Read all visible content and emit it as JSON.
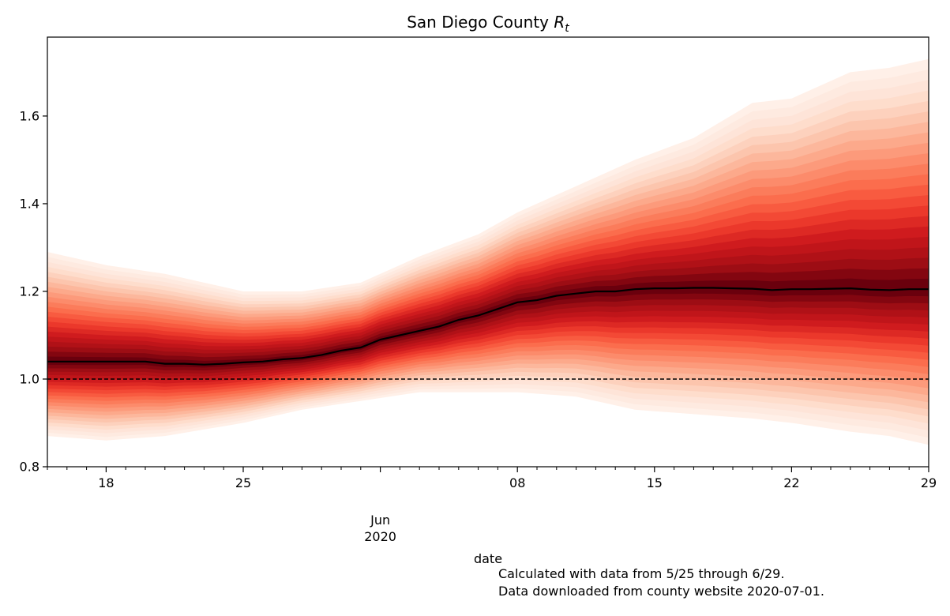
{
  "chart_data": {
    "type": "area",
    "title_text": "San Diego County ",
    "title_math_base": "R",
    "title_math_sub": "t",
    "xlabel": "date",
    "x_range": [
      "2020-05-15",
      "2020-06-29"
    ],
    "ylim": [
      0.8,
      1.78
    ],
    "y_ticks": [
      0.8,
      1.0,
      1.2,
      1.4,
      1.6
    ],
    "y_tick_labels": [
      "0.8",
      "1.0",
      "1.2",
      "1.4",
      "1.6"
    ],
    "x_major_ticks": [
      {
        "date": "2020-05-18",
        "label": "18"
      },
      {
        "date": "2020-05-25",
        "label": "25"
      },
      {
        "date": "2020-06-01",
        "label": "Jun\n2020"
      },
      {
        "date": "2020-06-08",
        "label": "08"
      },
      {
        "date": "2020-06-15",
        "label": "15"
      },
      {
        "date": "2020-06-22",
        "label": "22"
      },
      {
        "date": "2020-06-29",
        "label": "29"
      }
    ],
    "reference_line": {
      "y": 1.0,
      "style": "dashed",
      "color": "#000000"
    },
    "colormap": "Reds",
    "grid": false,
    "series": [
      {
        "role": "median",
        "color": "#000000",
        "points": [
          [
            "2020-05-15",
            1.04
          ],
          [
            "2020-05-16",
            1.04
          ],
          [
            "2020-05-17",
            1.04
          ],
          [
            "2020-05-18",
            1.04
          ],
          [
            "2020-05-19",
            1.04
          ],
          [
            "2020-05-20",
            1.04
          ],
          [
            "2020-05-21",
            1.035
          ],
          [
            "2020-05-22",
            1.035
          ],
          [
            "2020-05-23",
            1.033
          ],
          [
            "2020-05-24",
            1.035
          ],
          [
            "2020-05-25",
            1.038
          ],
          [
            "2020-05-26",
            1.04
          ],
          [
            "2020-05-27",
            1.045
          ],
          [
            "2020-05-28",
            1.048
          ],
          [
            "2020-05-29",
            1.055
          ],
          [
            "2020-05-30",
            1.065
          ],
          [
            "2020-05-31",
            1.072
          ],
          [
            "2020-06-01",
            1.09
          ],
          [
            "2020-06-02",
            1.1
          ],
          [
            "2020-06-03",
            1.11
          ],
          [
            "2020-06-04",
            1.12
          ],
          [
            "2020-06-05",
            1.135
          ],
          [
            "2020-06-06",
            1.145
          ],
          [
            "2020-06-07",
            1.16
          ],
          [
            "2020-06-08",
            1.175
          ],
          [
            "2020-06-09",
            1.18
          ],
          [
            "2020-06-10",
            1.19
          ],
          [
            "2020-06-11",
            1.195
          ],
          [
            "2020-06-12",
            1.2
          ],
          [
            "2020-06-13",
            1.2
          ],
          [
            "2020-06-14",
            1.205
          ],
          [
            "2020-06-15",
            1.207
          ],
          [
            "2020-06-16",
            1.207
          ],
          [
            "2020-06-17",
            1.208
          ],
          [
            "2020-06-18",
            1.208
          ],
          [
            "2020-06-19",
            1.207
          ],
          [
            "2020-06-20",
            1.206
          ],
          [
            "2020-06-21",
            1.203
          ],
          [
            "2020-06-22",
            1.205
          ],
          [
            "2020-06-23",
            1.205
          ],
          [
            "2020-06-24",
            1.206
          ],
          [
            "2020-06-25",
            1.207
          ],
          [
            "2020-06-26",
            1.204
          ],
          [
            "2020-06-27",
            1.203
          ],
          [
            "2020-06-28",
            1.205
          ],
          [
            "2020-06-29",
            1.205
          ]
        ]
      },
      {
        "role": "credible-band-upper",
        "points": [
          [
            "2020-05-15",
            1.29
          ],
          [
            "2020-05-18",
            1.26
          ],
          [
            "2020-05-21",
            1.24
          ],
          [
            "2020-05-25",
            1.2
          ],
          [
            "2020-05-28",
            1.2
          ],
          [
            "2020-05-31",
            1.22
          ],
          [
            "2020-06-03",
            1.28
          ],
          [
            "2020-06-06",
            1.33
          ],
          [
            "2020-06-08",
            1.38
          ],
          [
            "2020-06-11",
            1.44
          ],
          [
            "2020-06-14",
            1.5
          ],
          [
            "2020-06-17",
            1.55
          ],
          [
            "2020-06-20",
            1.63
          ],
          [
            "2020-06-22",
            1.64
          ],
          [
            "2020-06-25",
            1.7
          ],
          [
            "2020-06-27",
            1.71
          ],
          [
            "2020-06-29",
            1.73
          ]
        ]
      },
      {
        "role": "credible-band-lower",
        "points": [
          [
            "2020-05-15",
            0.87
          ],
          [
            "2020-05-18",
            0.86
          ],
          [
            "2020-05-21",
            0.87
          ],
          [
            "2020-05-25",
            0.9
          ],
          [
            "2020-05-28",
            0.93
          ],
          [
            "2020-05-31",
            0.95
          ],
          [
            "2020-06-03",
            0.97
          ],
          [
            "2020-06-06",
            0.97
          ],
          [
            "2020-06-08",
            0.97
          ],
          [
            "2020-06-11",
            0.96
          ],
          [
            "2020-06-14",
            0.93
          ],
          [
            "2020-06-17",
            0.92
          ],
          [
            "2020-06-20",
            0.91
          ],
          [
            "2020-06-22",
            0.9
          ],
          [
            "2020-06-25",
            0.88
          ],
          [
            "2020-06-27",
            0.87
          ],
          [
            "2020-06-29",
            0.85
          ]
        ]
      }
    ]
  },
  "footnote": {
    "line1": "Calculated with data from 5/25 through 6/29.",
    "line2": "Data downloaded from county website 2020-07-01."
  }
}
